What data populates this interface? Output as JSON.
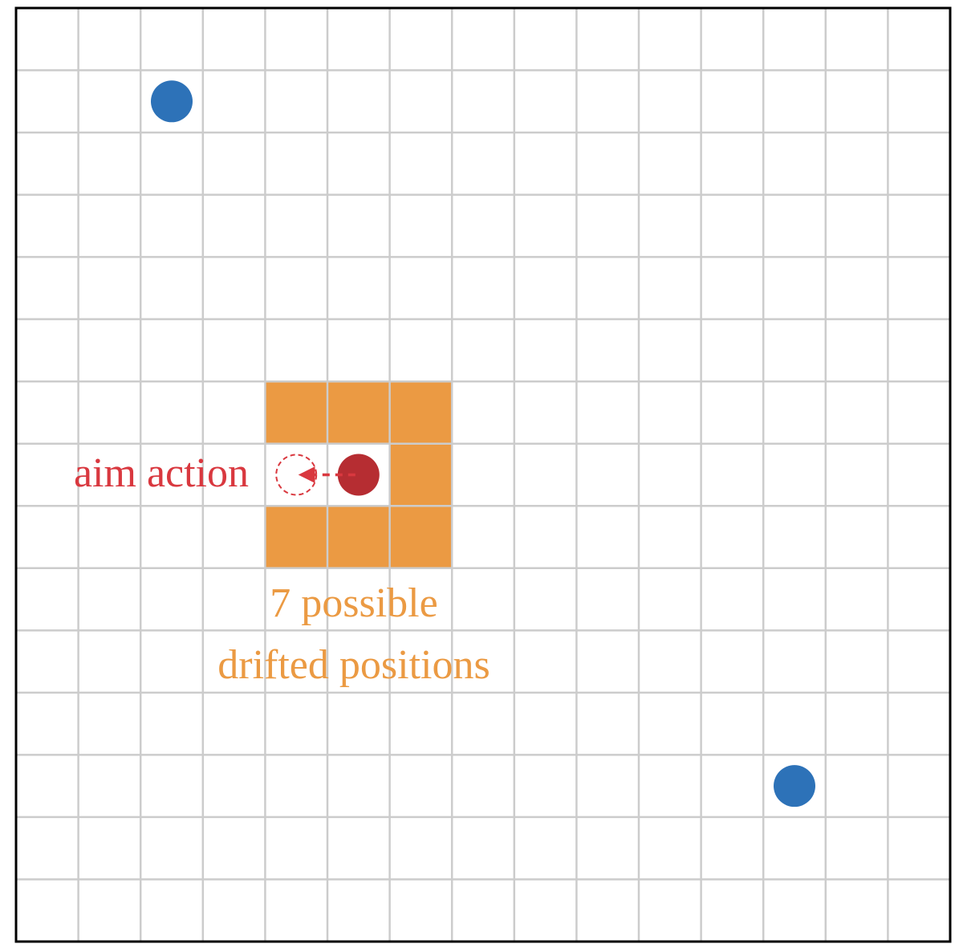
{
  "colors": {
    "background": "#ffffff",
    "grid": "#cccccc",
    "border": "#000000",
    "drift": "#eb9a43",
    "agent": "#b62d32",
    "aim": "#d9383f",
    "target": "#2d72b8"
  },
  "grid": {
    "columns": 15,
    "rows": 15
  },
  "drifted_cells": [
    {
      "col": 4,
      "row": 6
    },
    {
      "col": 5,
      "row": 6
    },
    {
      "col": 6,
      "row": 6
    },
    {
      "col": 6,
      "row": 7
    },
    {
      "col": 4,
      "row": 8
    },
    {
      "col": 5,
      "row": 8
    },
    {
      "col": 6,
      "row": 8
    }
  ],
  "agent": {
    "col": 5,
    "row": 7
  },
  "aim": {
    "col": 4,
    "row": 7
  },
  "targets": [
    {
      "col": 2,
      "row": 1
    },
    {
      "col": 12,
      "row": 12
    }
  ],
  "labels": {
    "aim_action": "aim action",
    "drift_line_1": "7 possible",
    "drift_line_2": "drifted positions"
  }
}
